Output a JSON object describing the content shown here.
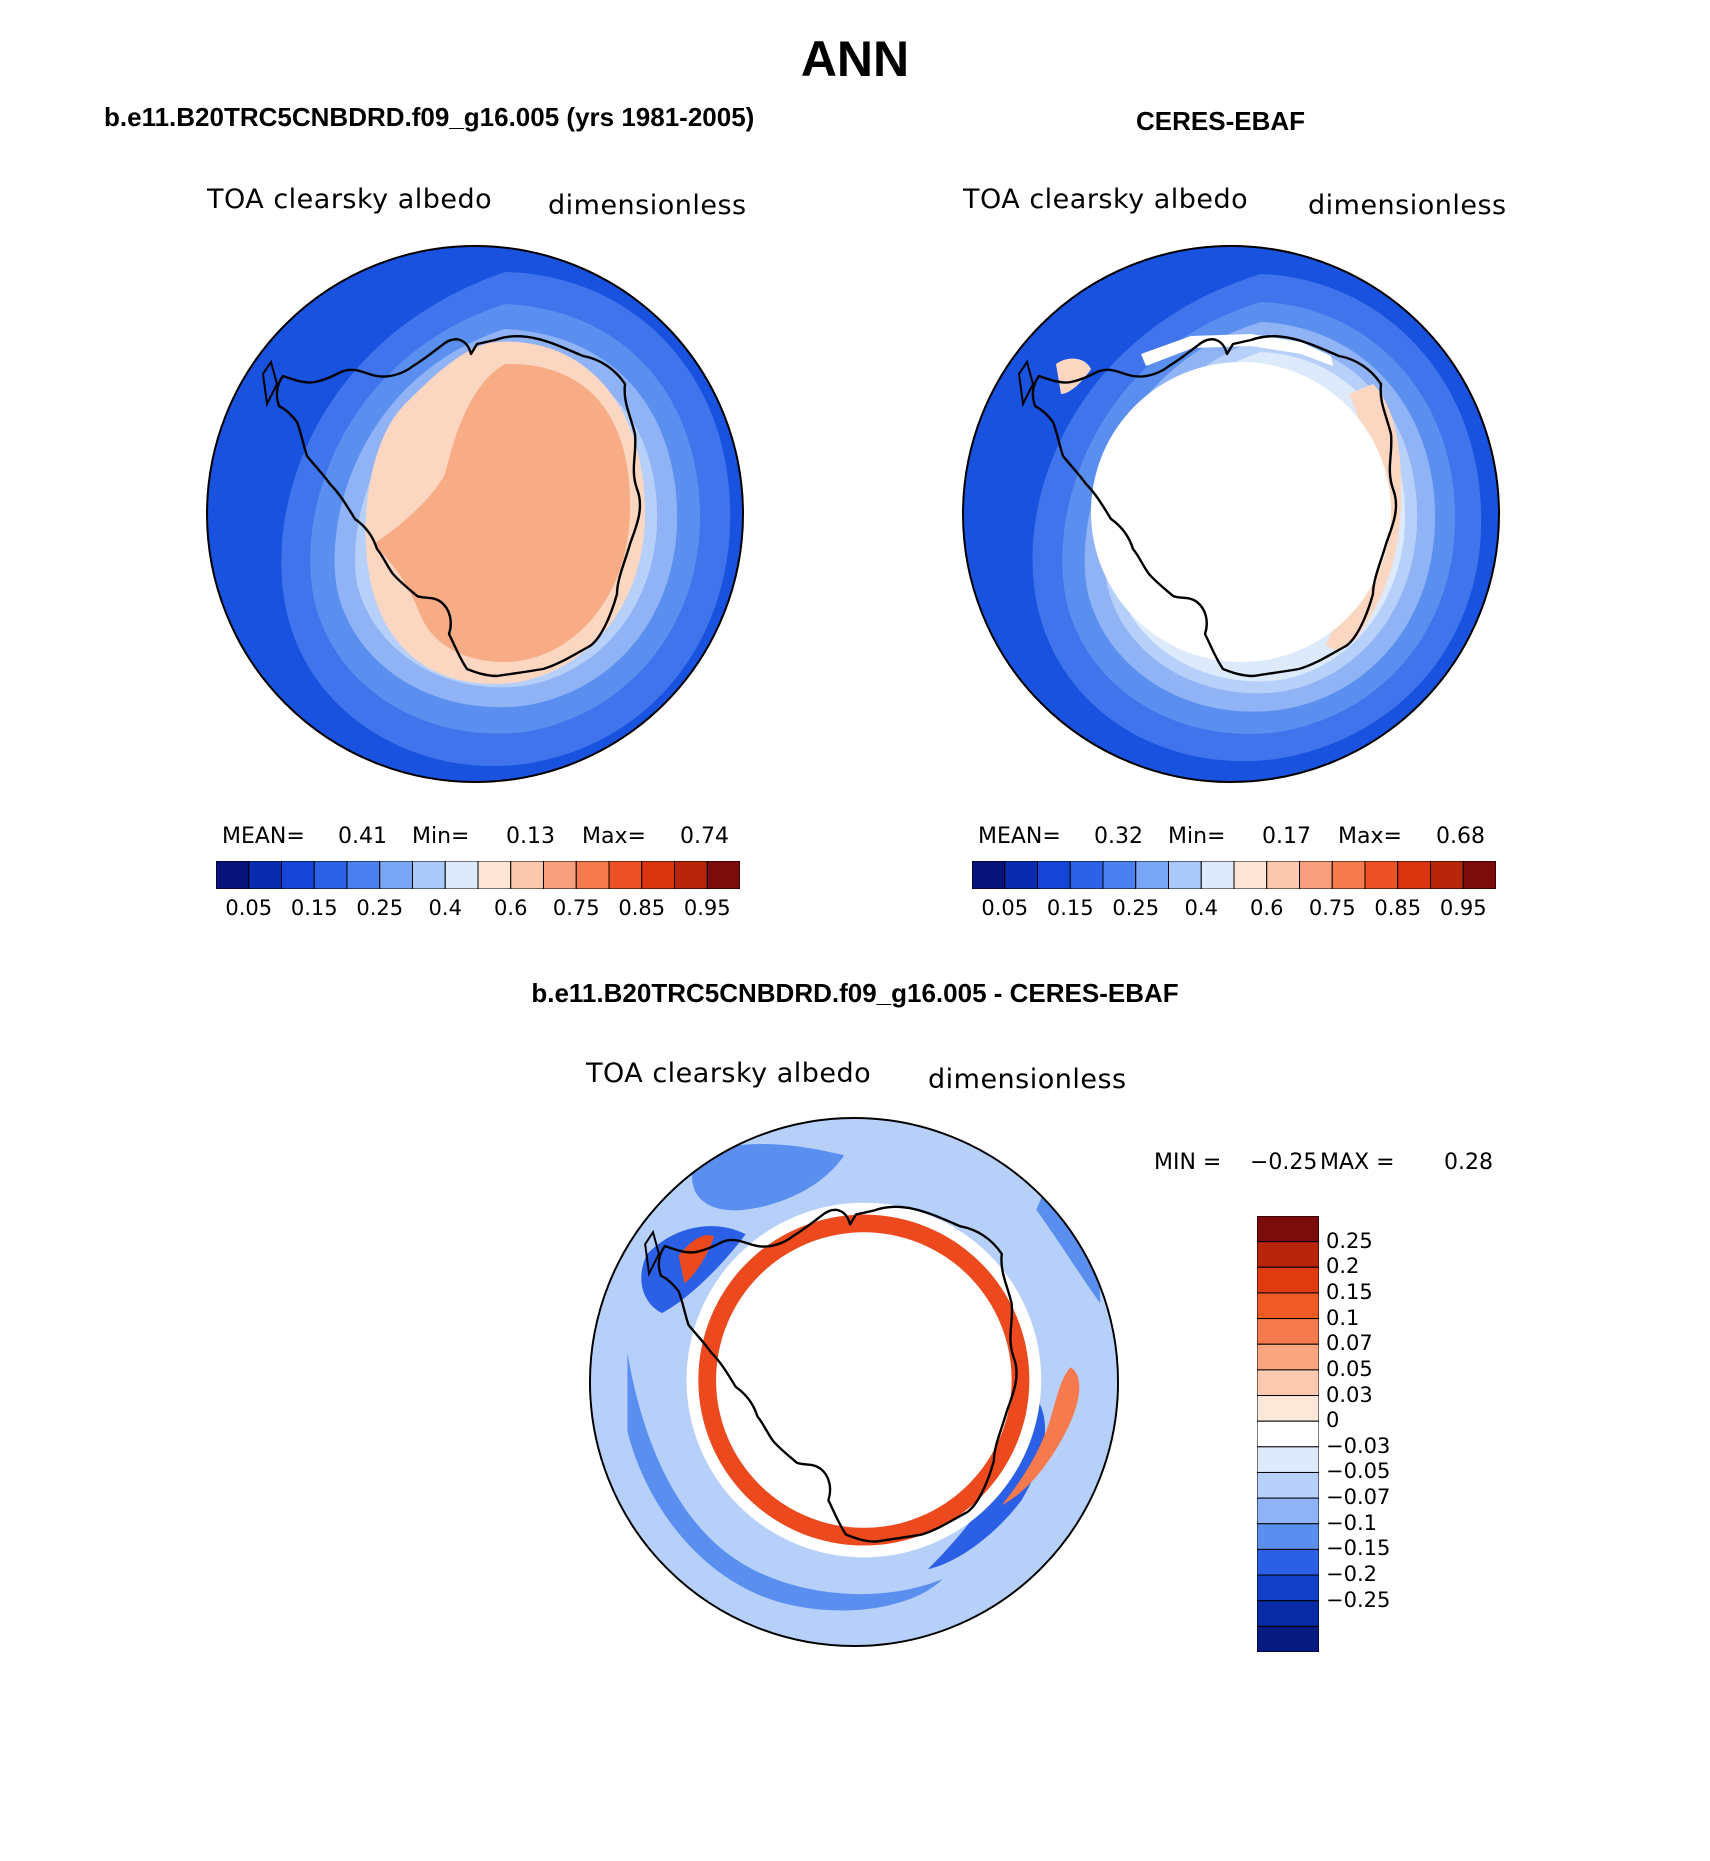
{
  "title": "ANN",
  "panels": [
    {
      "heading": "b.e11.B20TRC5CNBDRD.f09_g16.005 (yrs 1981-2005)",
      "variable": "TOA clearsky albedo",
      "units": "dimensionless",
      "stats": {
        "mean_label": "MEAN=",
        "mean": "0.41",
        "min_label": "Min=",
        "min": "0.13",
        "max_label": "Max=",
        "max": "0.74"
      }
    },
    {
      "heading": "CERES-EBAF",
      "variable": "TOA clearsky albedo",
      "units": "dimensionless",
      "stats": {
        "mean_label": "MEAN=",
        "mean": "0.32",
        "min_label": "Min=",
        "min": "0.17",
        "max_label": "Max=",
        "max": "0.68"
      }
    }
  ],
  "abs_colorbar": {
    "colors": [
      "#08107a",
      "#0a2bb0",
      "#1545d6",
      "#2e62e6",
      "#4a80f0",
      "#7aa6f6",
      "#aac8fa",
      "#dceafc",
      "#fde6d6",
      "#fbc9ae",
      "#f8a07e",
      "#f57a4e",
      "#ec5025",
      "#db3510",
      "#b8250b",
      "#7a0c0c"
    ],
    "tick_labels": [
      "0.05",
      "0.15",
      "0.25",
      "0.4",
      "0.6",
      "0.75",
      "0.85",
      "0.95"
    ]
  },
  "diff_panel": {
    "heading": "b.e11.B20TRC5CNBDRD.f09_g16.005 - CERES-EBAF",
    "variable": "TOA clearsky albedo",
    "units": "dimensionless",
    "min_label": "MIN =",
    "min": "−0.25",
    "max_label": "MAX =",
    "max": "0.28",
    "colorbar": {
      "colors": [
        "#7a0c0c",
        "#b8250b",
        "#e03a10",
        "#f05a26",
        "#f57a4e",
        "#f9a57f",
        "#fccab0",
        "#fde9da",
        "#ffffff",
        "#dceafc",
        "#b7d0fa",
        "#8fb3f5",
        "#5a8ff0",
        "#2a5fe6",
        "#1340c8",
        "#0a2ba6",
        "#061a80"
      ],
      "tick_labels": [
        "0.25",
        "0.2",
        "0.15",
        "0.1",
        "0.07",
        "0.05",
        "0.03",
        "0",
        "−0.03",
        "−0.05",
        "−0.07",
        "−0.1",
        "−0.15",
        "−0.2",
        "−0.25"
      ]
    }
  },
  "colors": {
    "ocean_deep": "#1a52e0",
    "ocean_mid": "#3f74ec",
    "ocean_light": "#7ea7f5",
    "ice_pale": "#aac8fa",
    "ice_very_pale": "#dceafc",
    "land_peach": "#fbd7c2",
    "land_orange": "#f8ac86",
    "diff_red": "#ec4a1e",
    "coast": "#000000"
  }
}
